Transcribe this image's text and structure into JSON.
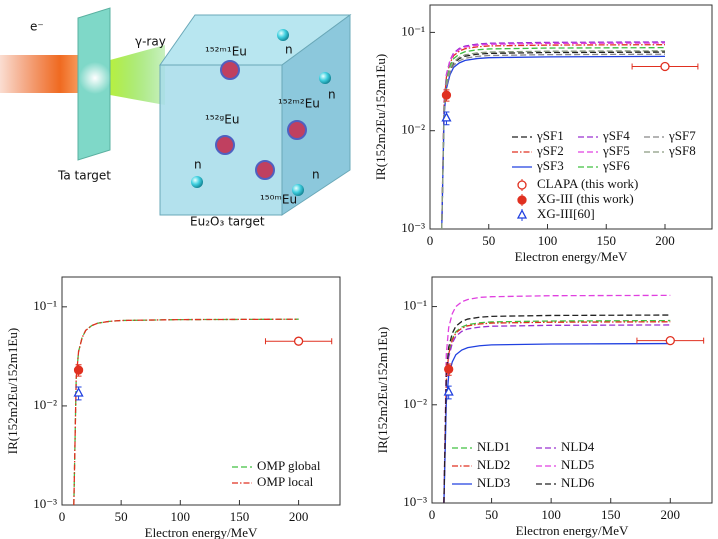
{
  "diagram": {
    "beam_label": "e⁻",
    "ray_label": "γ-ray",
    "target_label": "Ta target",
    "sample_label": "Eu₂O₃ target",
    "isotopes": [
      "¹⁵²ᵐ¹Eu",
      "¹⁵²ᵐ²Eu",
      "¹⁵²ᵍEu",
      "¹⁵⁰ᵐEu"
    ],
    "neutrons": [
      "n",
      "n",
      "n",
      "n"
    ]
  },
  "chart_data": [
    {
      "type": "line",
      "x_label": "Electron energy/MeV",
      "y_label": "IR(152m2Eu/152m1Eu)",
      "log_y": true,
      "xlim": [
        0,
        240
      ],
      "ylim": [
        0.001,
        0.19
      ],
      "xticks": [
        0,
        50,
        100,
        150,
        200
      ],
      "yticks": [
        {
          "value": 0.001,
          "label": "10⁻³"
        },
        {
          "value": 0.01,
          "label": "10⁻²"
        },
        {
          "value": 0.1,
          "label": "10⁻¹"
        }
      ],
      "legend_position": "lower right",
      "legend_rows": 3,
      "x": [
        10,
        12,
        14,
        17,
        20,
        25,
        30,
        40,
        50,
        100,
        200
      ],
      "series": [
        {
          "name": "γSF1",
          "color": "#222222",
          "style": "dash",
          "values": [
            0.001,
            0.0158,
            0.0296,
            0.041,
            0.0485,
            0.0542,
            0.0573,
            0.0599,
            0.0611,
            0.0624,
            0.063
          ]
        },
        {
          "name": "γSF2",
          "color": "#e03020",
          "style": "dashdot",
          "values": [
            0.001,
            0.0188,
            0.0353,
            0.0488,
            0.0578,
            0.0645,
            0.0683,
            0.0713,
            0.0728,
            0.0743,
            0.075
          ]
        },
        {
          "name": "γSF3",
          "color": "#2040e0",
          "style": "solid",
          "values": [
            0.001,
            0.0143,
            0.0268,
            0.0371,
            0.0439,
            0.049,
            0.0519,
            0.0542,
            0.0553,
            0.0564,
            0.057
          ]
        },
        {
          "name": "γSF4",
          "color": "#9a30d0",
          "style": "dash",
          "values": [
            0.001,
            0.02,
            0.0376,
            0.052,
            0.0616,
            0.0688,
            0.0728,
            0.076,
            0.0776,
            0.0792,
            0.08
          ]
        },
        {
          "name": "γSF5",
          "color": "#e040e0",
          "style": "dash",
          "values": [
            0.001,
            0.0195,
            0.0367,
            0.0507,
            0.0601,
            0.0671,
            0.071,
            0.0741,
            0.0757,
            0.0772,
            0.078
          ]
        },
        {
          "name": "γSF6",
          "color": "#40c040",
          "style": "dash",
          "values": [
            0.001,
            0.0175,
            0.0329,
            0.0455,
            0.0539,
            0.0602,
            0.0637,
            0.0665,
            0.0679,
            0.0693,
            0.07
          ]
        },
        {
          "name": "γSF7",
          "color": "#888888",
          "style": "dash",
          "values": [
            0.001,
            0.015,
            0.0282,
            0.039,
            0.0462,
            0.0516,
            0.0546,
            0.057,
            0.0582,
            0.0594,
            0.06
          ]
        },
        {
          "name": "γSF8",
          "color": "#8a9a80",
          "style": "dash",
          "values": [
            0.001,
            0.0163,
            0.0306,
            0.0423,
            0.05,
            0.0559,
            0.0592,
            0.0618,
            0.0631,
            0.0644,
            0.065
          ]
        },
        {
          "name": "CLAPA (this work)",
          "color": "#e03020",
          "marker": "circle-open",
          "x": [
            200
          ],
          "values": [
            0.045
          ],
          "xerr": [
            28
          ]
        },
        {
          "name": "XG-III (this work)",
          "color": "#e03020",
          "marker": "circle-filled",
          "x": [
            14
          ],
          "values": [
            0.023
          ],
          "yerr": [
            0.003
          ]
        },
        {
          "name": "XG-III[60]",
          "color": "#2040e0",
          "marker": "triangle-open",
          "x": [
            14
          ],
          "values": [
            0.0135
          ],
          "yerr": [
            0.002
          ]
        }
      ]
    },
    {
      "type": "line",
      "x_label": "Electron energy/MeV",
      "y_label": "IR(152m2Eu/152m1Eu)",
      "log_y": true,
      "xlim": [
        0,
        235
      ],
      "ylim": [
        0.001,
        0.2
      ],
      "xticks": [
        0,
        50,
        100,
        150,
        200
      ],
      "yticks": [
        {
          "value": 0.001,
          "label": "10⁻³"
        },
        {
          "value": 0.01,
          "label": "10⁻²"
        },
        {
          "value": 0.1,
          "label": "10⁻¹"
        }
      ],
      "legend_position": "lower right",
      "legend_rows": 2,
      "x": [
        10,
        12,
        14,
        17,
        20,
        25,
        30,
        40,
        50,
        100,
        200
      ],
      "series": [
        {
          "name": "OMP global",
          "color": "#40c040",
          "style": "dash",
          "values": [
            0.001,
            0.0188,
            0.0353,
            0.0488,
            0.0578,
            0.0645,
            0.0683,
            0.0713,
            0.0728,
            0.0743,
            0.075
          ]
        },
        {
          "name": "OMP local",
          "color": "#e03020",
          "style": "dashdot",
          "values": [
            0.001,
            0.0188,
            0.0353,
            0.0488,
            0.0578,
            0.0645,
            0.0683,
            0.0713,
            0.0728,
            0.0743,
            0.075
          ]
        },
        {
          "color": "#e03020",
          "marker": "circle-open",
          "x": [
            200
          ],
          "values": [
            0.045
          ],
          "xerr": [
            28
          ]
        },
        {
          "color": "#e03020",
          "marker": "circle-filled",
          "x": [
            14
          ],
          "values": [
            0.023
          ],
          "yerr": [
            0.003
          ]
        },
        {
          "color": "#2040e0",
          "marker": "triangle-open",
          "x": [
            14
          ],
          "values": [
            0.0135
          ],
          "yerr": [
            0.002
          ]
        }
      ]
    },
    {
      "type": "line",
      "x_label": "Electron energy/MeV",
      "y_label": "IR(152m2Eu/152m1Eu)",
      "log_y": true,
      "xlim": [
        0,
        235
      ],
      "ylim": [
        0.001,
        0.2
      ],
      "xticks": [
        0,
        50,
        100,
        150,
        200
      ],
      "yticks": [
        {
          "value": 0.001,
          "label": "10⁻³"
        },
        {
          "value": 0.01,
          "label": "10⁻²"
        },
        {
          "value": 0.1,
          "label": "10⁻¹"
        }
      ],
      "legend_position": "lower right",
      "legend_rows": 3,
      "x": [
        10,
        12,
        14,
        17,
        20,
        25,
        30,
        40,
        50,
        100,
        200
      ],
      "series": [
        {
          "name": "NLD1",
          "color": "#40c040",
          "style": "dash",
          "values": [
            0.001,
            0.018,
            0.0338,
            0.0468,
            0.0554,
            0.0619,
            0.0655,
            0.0684,
            0.0698,
            0.0713,
            0.072
          ]
        },
        {
          "name": "NLD2",
          "color": "#e03020",
          "style": "dashdot",
          "values": [
            0.001,
            0.0175,
            0.0329,
            0.0455,
            0.0539,
            0.0602,
            0.0637,
            0.0665,
            0.0679,
            0.0693,
            0.07
          ]
        },
        {
          "name": "NLD3",
          "color": "#2040e0",
          "style": "solid",
          "values": [
            0.001,
            0.0105,
            0.0197,
            0.0273,
            0.0323,
            0.0361,
            0.0382,
            0.0399,
            0.0407,
            0.0416,
            0.042
          ]
        },
        {
          "name": "NLD4",
          "color": "#9a30d0",
          "style": "dash",
          "values": [
            0.001,
            0.0163,
            0.0306,
            0.0423,
            0.05,
            0.0559,
            0.0592,
            0.0618,
            0.0631,
            0.0644,
            0.065
          ]
        },
        {
          "name": "NLD5",
          "color": "#e040e0",
          "style": "dash",
          "values": [
            0.001,
            0.0325,
            0.0611,
            0.0845,
            0.1,
            0.112,
            0.118,
            0.124,
            0.126,
            0.129,
            0.13
          ]
        },
        {
          "name": "NLD6",
          "color": "#222222",
          "style": "dash",
          "values": [
            0.001,
            0.0205,
            0.0385,
            0.0533,
            0.0631,
            0.0705,
            0.0746,
            0.0779,
            0.0795,
            0.0812,
            0.082
          ]
        },
        {
          "color": "#e03020",
          "marker": "circle-open",
          "x": [
            200
          ],
          "values": [
            0.045
          ],
          "xerr": [
            28
          ]
        },
        {
          "color": "#e03020",
          "marker": "circle-filled",
          "x": [
            14
          ],
          "values": [
            0.023
          ],
          "yerr": [
            0.003
          ]
        },
        {
          "color": "#2040e0",
          "marker": "triangle-open",
          "x": [
            14
          ],
          "values": [
            0.0135
          ],
          "yerr": [
            0.002
          ]
        }
      ]
    }
  ]
}
